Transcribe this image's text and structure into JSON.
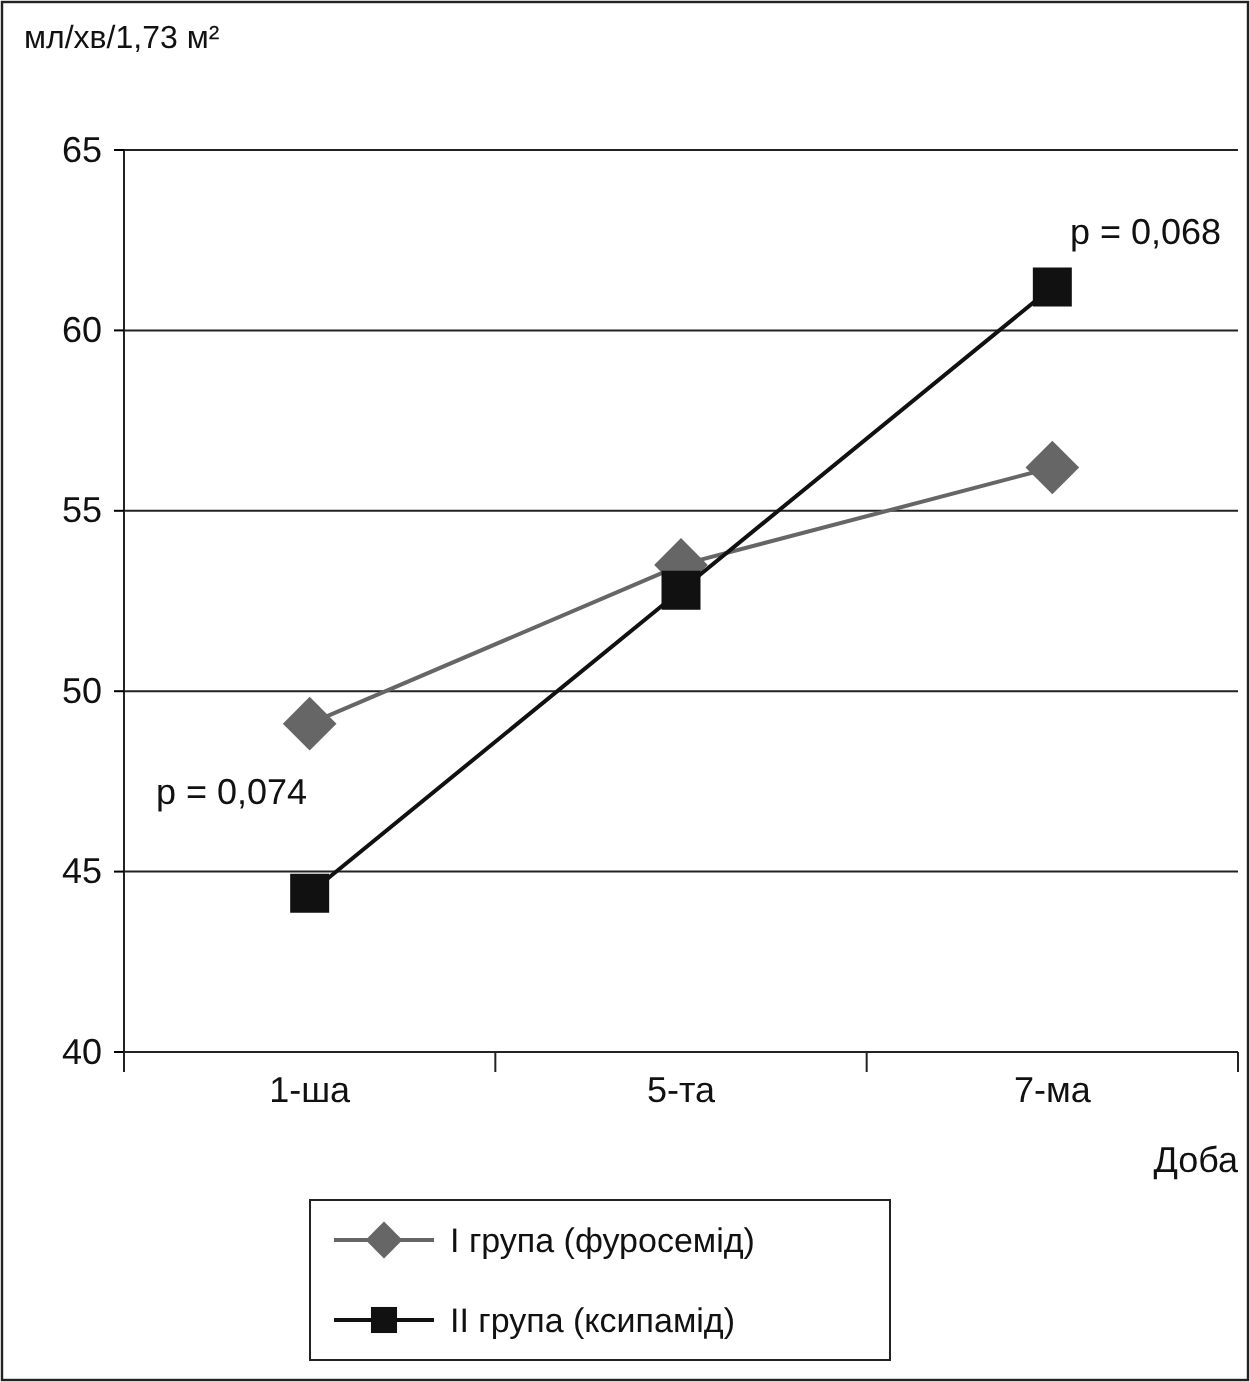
{
  "chart_data": {
    "type": "line",
    "ylabel": "мл/хв/1,73 м²",
    "xlabel": "Доба",
    "categories": [
      "1-ша",
      "5-та",
      "7-ма"
    ],
    "series": [
      {
        "name": "I група (фуросемід)",
        "color": "#666666",
        "marker": "diamond",
        "values": [
          49.1,
          53.5,
          56.2
        ]
      },
      {
        "name": "II група (ксипамід)",
        "color": "#111111",
        "marker": "square",
        "values": [
          44.4,
          52.8,
          61.2
        ]
      }
    ],
    "ylim": [
      40,
      65
    ],
    "yticks": [
      40,
      45,
      50,
      55,
      60,
      65
    ],
    "grid": "y",
    "legend": "bottom",
    "annotations": [
      "p = 0,074",
      "p = 0,068"
    ]
  }
}
